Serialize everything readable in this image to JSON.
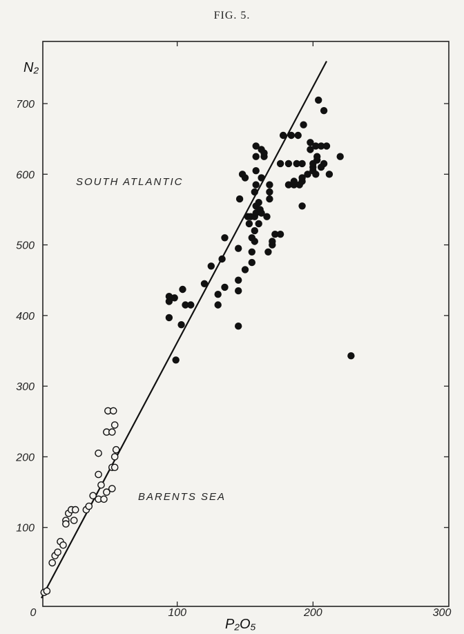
{
  "figure_label": "FIG. 5.",
  "chart_data": {
    "type": "scatter",
    "title": "",
    "xlabel": "P₂O₅",
    "ylabel": "N₂",
    "xlim": [
      0,
      300
    ],
    "ylim": [
      0,
      760
    ],
    "x_ticks": [
      0,
      100,
      200,
      300
    ],
    "y_ticks": [
      100,
      200,
      300,
      400,
      500,
      600,
      700
    ],
    "grid": false,
    "regression_line": {
      "x": [
        0,
        210
      ],
      "y": [
        0,
        760
      ]
    },
    "annotations": [
      "SOUTH ATLANTIC",
      "BARENTS SEA"
    ],
    "series": [
      {
        "marker": "open-circle",
        "points": [
          [
            2,
            8
          ],
          [
            4,
            10
          ],
          [
            8,
            50
          ],
          [
            10,
            60
          ],
          [
            12,
            65
          ],
          [
            14,
            80
          ],
          [
            16,
            75
          ],
          [
            18,
            110
          ],
          [
            18,
            105
          ],
          [
            20,
            120
          ],
          [
            22,
            125
          ],
          [
            24,
            110
          ],
          [
            25,
            125
          ],
          [
            33,
            125
          ],
          [
            35,
            130
          ],
          [
            38,
            145
          ],
          [
            42,
            140
          ],
          [
            42,
            175
          ],
          [
            42,
            205
          ],
          [
            44,
            160
          ],
          [
            46,
            140
          ],
          [
            48,
            150
          ],
          [
            48,
            235
          ],
          [
            49,
            265
          ],
          [
            52,
            155
          ],
          [
            52,
            235
          ],
          [
            52,
            185
          ],
          [
            53,
            265
          ],
          [
            54,
            200
          ],
          [
            54,
            245
          ],
          [
            54,
            185
          ],
          [
            55,
            210
          ]
        ]
      },
      {
        "marker": "filled-circle",
        "points": [
          [
            94,
            420
          ],
          [
            94,
            427
          ],
          [
            94,
            397
          ],
          [
            98,
            425
          ],
          [
            99,
            337
          ],
          [
            103,
            387
          ],
          [
            104,
            437
          ],
          [
            106,
            415
          ],
          [
            110,
            415
          ],
          [
            120,
            445
          ],
          [
            125,
            470
          ],
          [
            130,
            430
          ],
          [
            130,
            415
          ],
          [
            133,
            480
          ],
          [
            135,
            440
          ],
          [
            135,
            510
          ],
          [
            145,
            385
          ],
          [
            145,
            435
          ],
          [
            145,
            450
          ],
          [
            145,
            495
          ],
          [
            146,
            565
          ],
          [
            148,
            600
          ],
          [
            150,
            595
          ],
          [
            150,
            465
          ],
          [
            152,
            540
          ],
          [
            153,
            530
          ],
          [
            154,
            540
          ],
          [
            155,
            475
          ],
          [
            155,
            490
          ],
          [
            155,
            510
          ],
          [
            157,
            505
          ],
          [
            157,
            520
          ],
          [
            157,
            540
          ],
          [
            157,
            575
          ],
          [
            158,
            555
          ],
          [
            158,
            585
          ],
          [
            158,
            605
          ],
          [
            158,
            625
          ],
          [
            158,
            640
          ],
          [
            158,
            545
          ],
          [
            160,
            530
          ],
          [
            160,
            560
          ],
          [
            161,
            550
          ],
          [
            162,
            545
          ],
          [
            162,
            635
          ],
          [
            162,
            595
          ],
          [
            164,
            625
          ],
          [
            164,
            630
          ],
          [
            166,
            540
          ],
          [
            167,
            490
          ],
          [
            168,
            565
          ],
          [
            168,
            575
          ],
          [
            168,
            585
          ],
          [
            170,
            500
          ],
          [
            170,
            505
          ],
          [
            172,
            515
          ],
          [
            176,
            515
          ],
          [
            176,
            615
          ],
          [
            178,
            655
          ],
          [
            182,
            585
          ],
          [
            182,
            615
          ],
          [
            184,
            655
          ],
          [
            186,
            585
          ],
          [
            186,
            590
          ],
          [
            188,
            615
          ],
          [
            189,
            655
          ],
          [
            190,
            585
          ],
          [
            192,
            555
          ],
          [
            192,
            590
          ],
          [
            192,
            595
          ],
          [
            192,
            615
          ],
          [
            193,
            670
          ],
          [
            196,
            600
          ],
          [
            198,
            635
          ],
          [
            198,
            645
          ],
          [
            200,
            605
          ],
          [
            200,
            610
          ],
          [
            200,
            615
          ],
          [
            202,
            600
          ],
          [
            202,
            640
          ],
          [
            203,
            620
          ],
          [
            203,
            625
          ],
          [
            204,
            705
          ],
          [
            206,
            610
          ],
          [
            206,
            640
          ],
          [
            208,
            615
          ],
          [
            208,
            690
          ],
          [
            210,
            640
          ],
          [
            212,
            600
          ],
          [
            220,
            625
          ],
          [
            228,
            343
          ]
        ]
      }
    ]
  }
}
